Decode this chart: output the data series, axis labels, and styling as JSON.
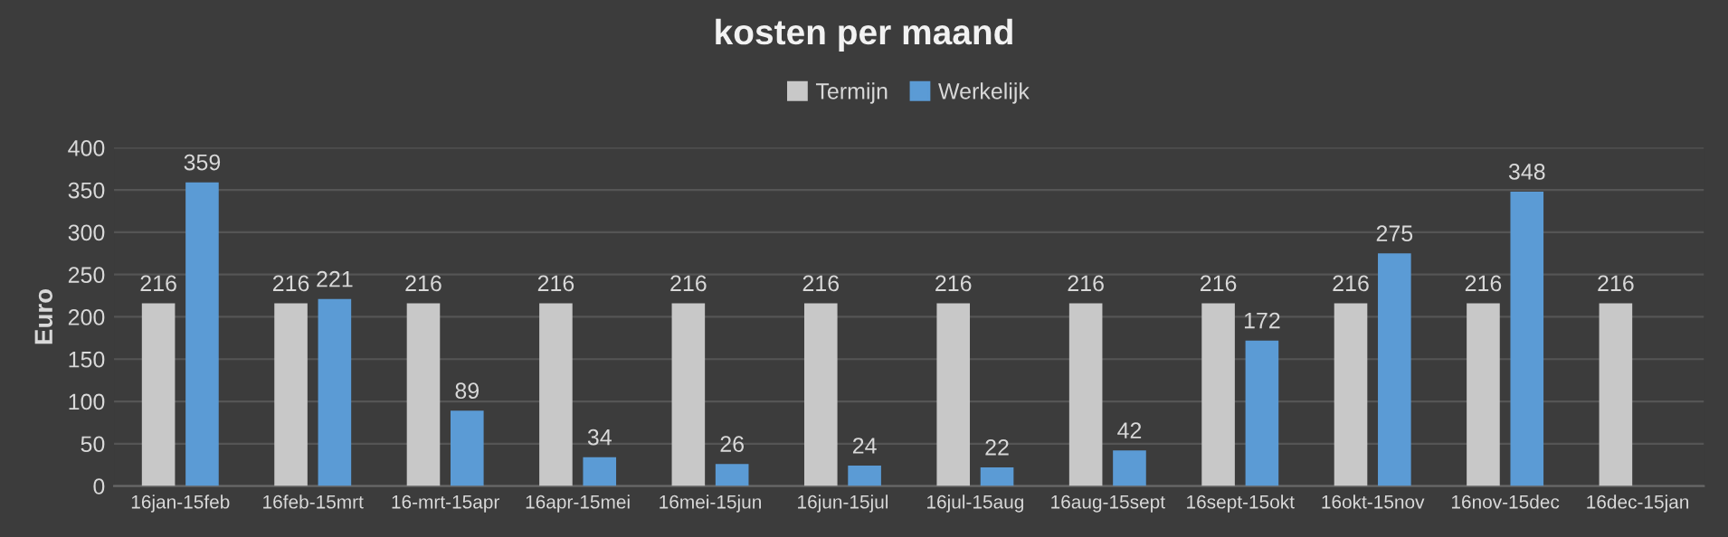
{
  "chart_data": {
    "type": "bar",
    "title": "kosten per maand",
    "ylabel": "Euro",
    "categories": [
      "16jan-15feb",
      "16feb-15mrt",
      "16-mrt-15apr",
      "16apr-15mei",
      "16mei-15jun",
      "16jun-15jul",
      "16jul-15aug",
      "16aug-15sept",
      "16sept-15okt",
      "16okt-15nov",
      "16nov-15dec",
      "16dec-15jan"
    ],
    "series": [
      {
        "name": "Termijn",
        "color": "#c8c8c8",
        "values": [
          216,
          216,
          216,
          216,
          216,
          216,
          216,
          216,
          216,
          216,
          216,
          216
        ]
      },
      {
        "name": "Werkelijk",
        "color": "#5b9bd5",
        "values": [
          359,
          221,
          89,
          34,
          26,
          24,
          22,
          42,
          172,
          275,
          348,
          null
        ]
      }
    ],
    "ylim": [
      0,
      400
    ],
    "yticks": [
      0,
      50,
      100,
      150,
      200,
      250,
      300,
      350,
      400
    ],
    "grid": "y",
    "legend": "top",
    "data_labels": true
  }
}
